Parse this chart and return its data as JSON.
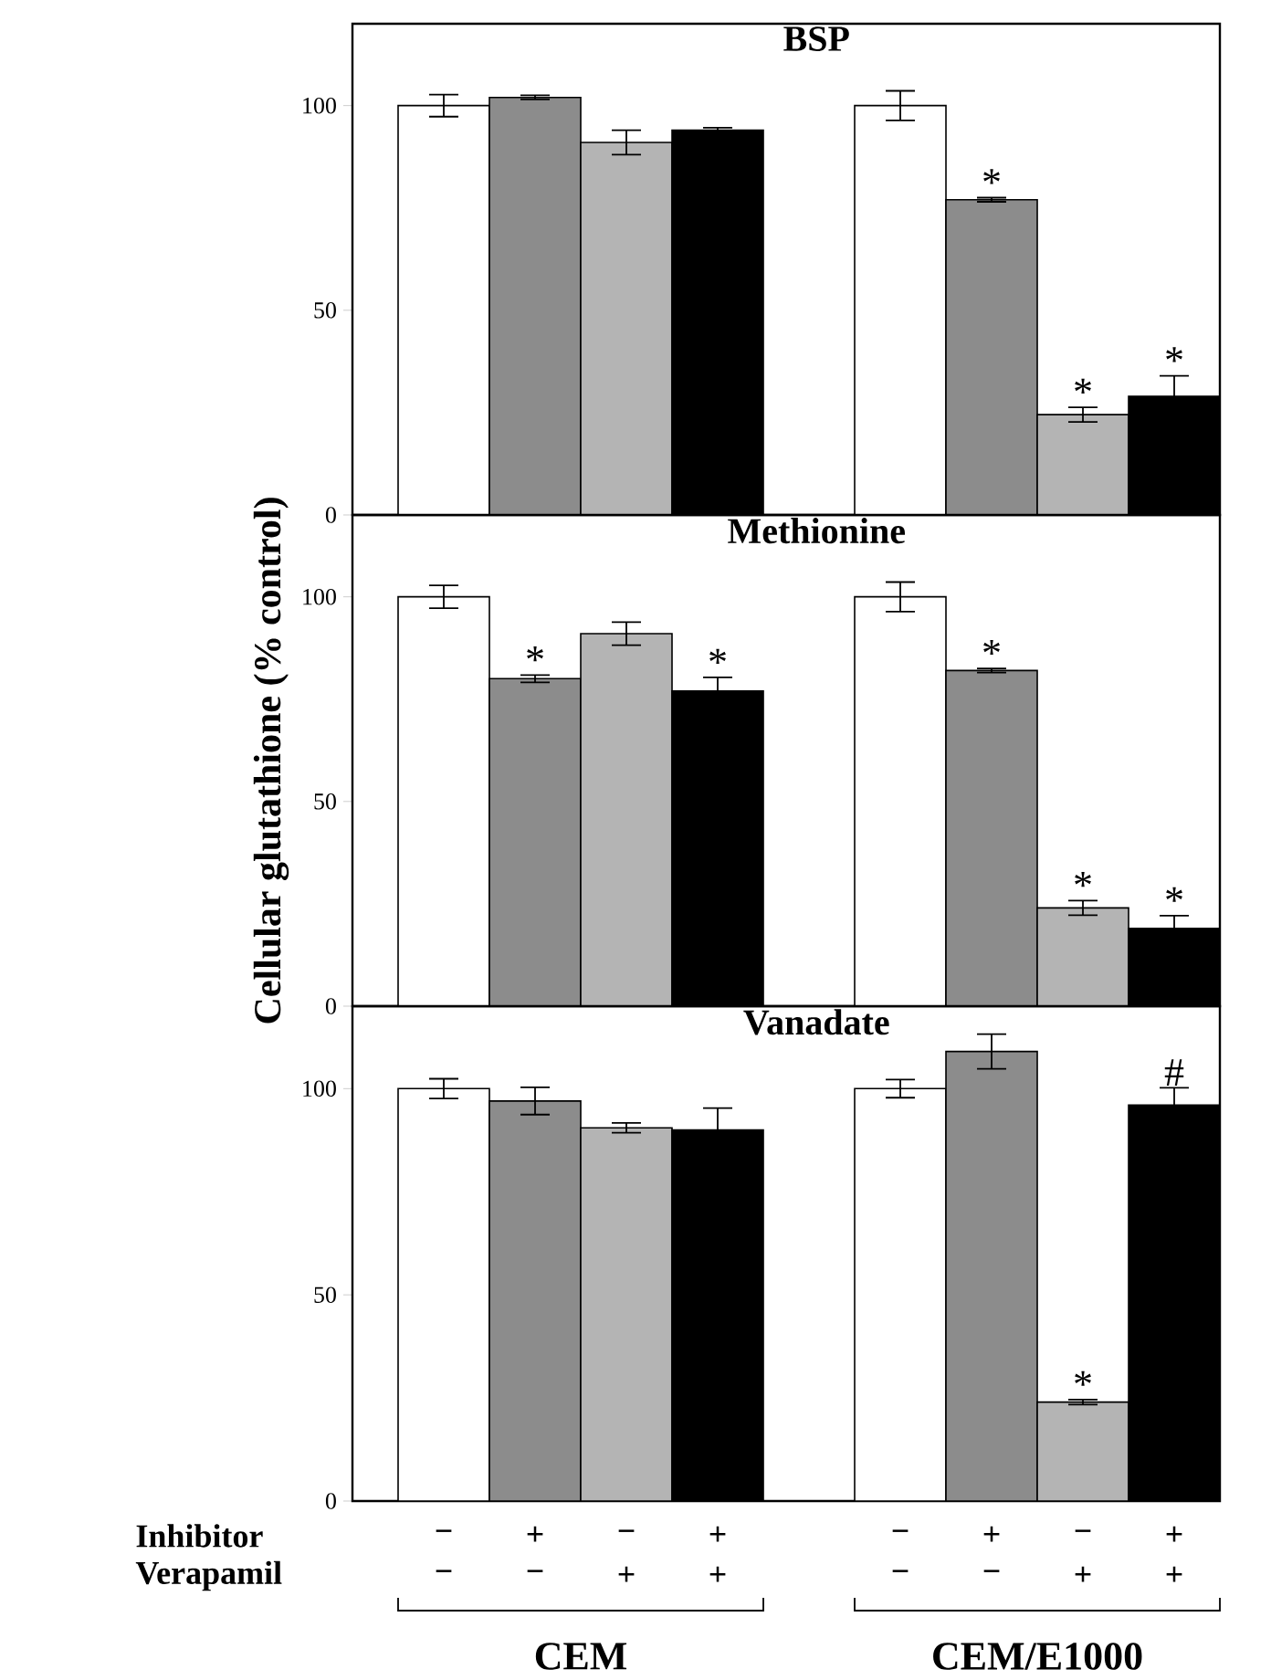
{
  "chart_data": [
    {
      "type": "bar",
      "title": "BSP",
      "categories": [
        null,
        null,
        null,
        null,
        null,
        null,
        null,
        null
      ],
      "values": [
        100,
        102,
        91,
        94,
        100,
        77,
        24.5,
        29
      ],
      "errors": [
        2.7,
        0.5,
        3,
        0.6,
        3.6,
        0.5,
        1.8,
        5
      ],
      "value_labels": [
        null,
        null,
        null,
        null,
        null,
        "*",
        "*",
        "*"
      ],
      "colors": [
        "#ffffff",
        "#8c8c8c",
        "#b4b4b4",
        "#000000",
        "#ffffff",
        "#8c8c8c",
        "#b4b4b4",
        "#000000"
      ],
      "ylim": [
        0,
        120
      ],
      "yticks": [
        0,
        50,
        100
      ]
    },
    {
      "type": "bar",
      "title": "Methionine",
      "ylabel": "Cellular glutathione (% control)",
      "categories": [
        null,
        null,
        null,
        null,
        null,
        null,
        null,
        null
      ],
      "values": [
        100,
        80,
        91,
        77,
        100,
        82,
        24,
        19
      ],
      "errors": [
        2.8,
        0.9,
        2.8,
        3.3,
        3.6,
        0.5,
        1.8,
        3.1
      ],
      "value_labels": [
        null,
        "*",
        null,
        "*",
        null,
        "*",
        "*",
        "*"
      ],
      "colors": [
        "#ffffff",
        "#8c8c8c",
        "#b4b4b4",
        "#000000",
        "#ffffff",
        "#8c8c8c",
        "#b4b4b4",
        "#000000"
      ],
      "ylim": [
        0,
        120
      ],
      "yticks": [
        0,
        50,
        100
      ]
    },
    {
      "type": "bar",
      "title": "Vanadate",
      "categories": [
        null,
        null,
        null,
        null,
        null,
        null,
        null,
        null
      ],
      "values": [
        100,
        97,
        90.5,
        90,
        100,
        109,
        24,
        96
      ],
      "errors": [
        2.4,
        3.3,
        1.2,
        5.3,
        2.2,
        4.2,
        0.6,
        4.2
      ],
      "value_labels": [
        null,
        null,
        null,
        null,
        null,
        null,
        "*",
        "#"
      ],
      "colors": [
        "#ffffff",
        "#8c8c8c",
        "#b4b4b4",
        "#000000",
        "#ffffff",
        "#8c8c8c",
        "#b4b4b4",
        "#000000"
      ],
      "ylim": [
        0,
        120
      ],
      "yticks": [
        0,
        50,
        100
      ],
      "annotations": [
        "Inhibitor",
        "−",
        "+",
        "−",
        "+",
        "−",
        "+",
        "−",
        "+",
        "Verapamil",
        "−",
        "−",
        "+",
        "+",
        "−",
        "−",
        "+",
        "+",
        "CEM",
        "CEM/E1000"
      ]
    }
  ]
}
